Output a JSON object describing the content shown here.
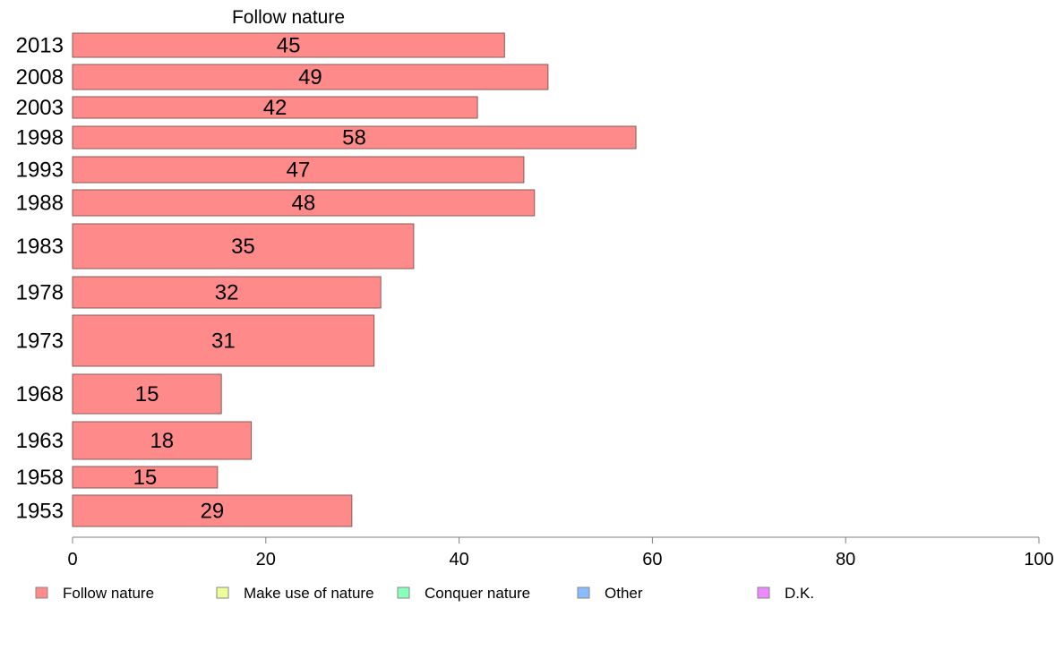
{
  "chart_data": {
    "type": "bar",
    "orientation": "horizontal",
    "title": "Follow nature",
    "categories": [
      "2013",
      "2008",
      "2003",
      "1998",
      "1993",
      "1988",
      "1983",
      "1978",
      "1973",
      "1968",
      "1963",
      "1958",
      "1953"
    ],
    "series": [
      {
        "name": "Follow nature",
        "color": "#ff8a8a",
        "values": [
          45,
          49,
          42,
          58,
          47,
          48,
          35,
          32,
          31,
          15,
          18,
          15,
          29
        ],
        "bar_values": [
          44.7,
          49.2,
          41.9,
          58.3,
          46.7,
          47.8,
          35.3,
          31.9,
          31.2,
          15.4,
          18.5,
          15.0,
          28.9
        ]
      }
    ],
    "xlim": [
      0,
      100
    ],
    "xticks": [
      "0",
      "20",
      "40",
      "60",
      "80",
      "100"
    ],
    "legend": {
      "position": "bottom",
      "entries": [
        {
          "label": "Follow nature",
          "color": "#ff8a8a"
        },
        {
          "label": "Make use of nature",
          "color": "#eeff99"
        },
        {
          "label": "Conquer nature",
          "color": "#88ffbb"
        },
        {
          "label": "Other",
          "color": "#88bbff"
        },
        {
          "label": "D.K.",
          "color": "#ee88ff"
        }
      ]
    }
  }
}
